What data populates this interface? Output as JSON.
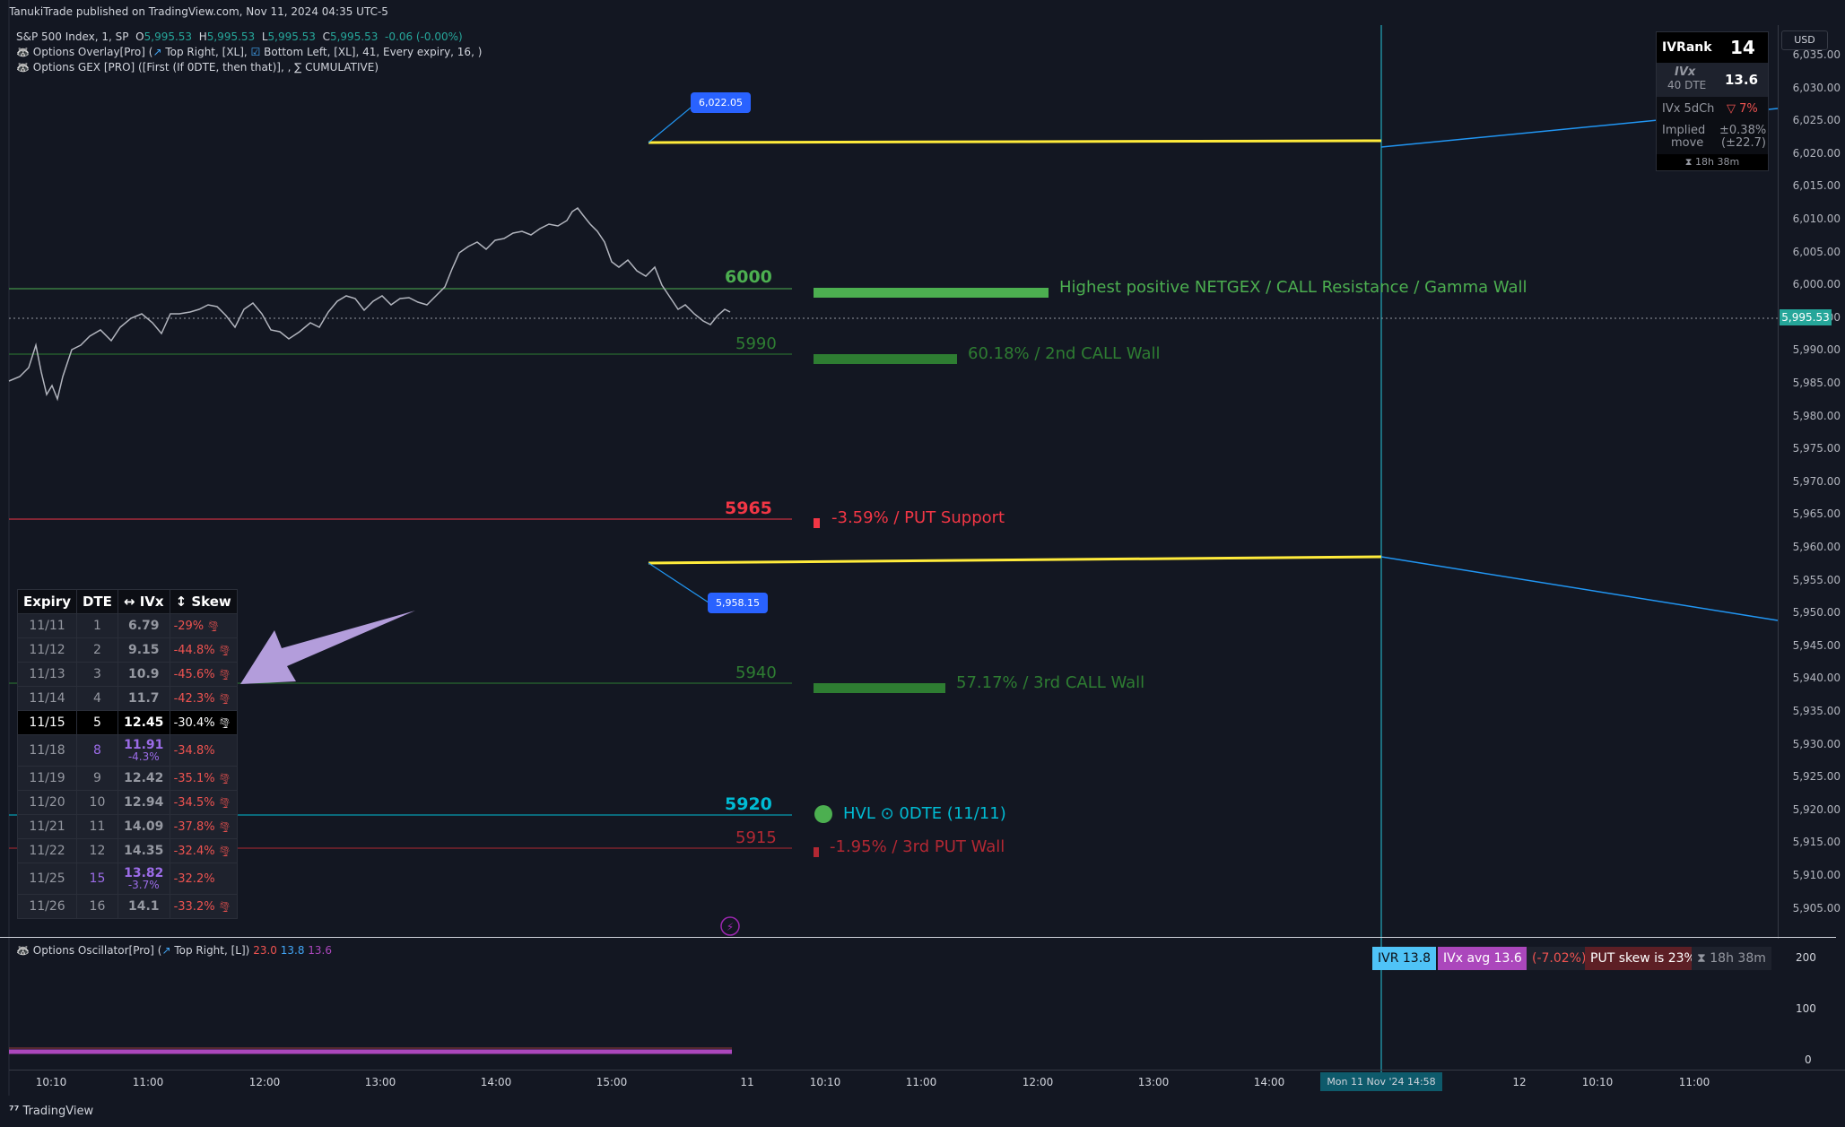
{
  "header": {
    "published": "TanukiTrade published on TradingView.com, Nov 11, 2024 04:35 UTC-5"
  },
  "legend": {
    "symbol": "S&P 500 Index, 1, SP",
    "o_label": "O",
    "o_val": "5,995.53",
    "h_label": "H",
    "h_val": "5,995.53",
    "l_label": "L",
    "l_val": "5,995.53",
    "c_label": "C",
    "c_val": "5,995.53",
    "change": "-0.06 (-0.00%)",
    "line2_a": "Options Overlay[Pro] (",
    "line2_b": "Top Right, [XL],",
    "line2_c": "Bottom Left, [XL], 41, Every expiry, 16, )",
    "line3": "Options GEX [PRO] ([First (If 0DTE, then that)], , ∑ CUMULATIVE)"
  },
  "price_axis": {
    "currency": "USD",
    "ticks": [
      "6,035.00",
      "6,030.00",
      "6,025.00",
      "6,020.00",
      "6,015.00",
      "6,010.00",
      "6,005.00",
      "6,000.00",
      "5,995.00",
      "5,990.00",
      "5,985.00",
      "5,980.00",
      "5,975.00",
      "5,970.00",
      "5,965.00",
      "5,960.00",
      "5,955.00",
      "5,950.00",
      "5,945.00",
      "5,940.00",
      "5,935.00",
      "5,930.00",
      "5,925.00",
      "5,920.00",
      "5,915.00",
      "5,910.00",
      "5,905.00"
    ],
    "last_price": "5,995.53"
  },
  "time_axis": {
    "labels": [
      "10:10",
      "11:00",
      "12:00",
      "13:00",
      "14:00",
      "15:00",
      "11",
      "10:10",
      "11:00",
      "12:00",
      "13:00",
      "14:00",
      "12",
      "10:10",
      "11:00"
    ],
    "cursor": "Mon 11 Nov '24   14:58"
  },
  "levels": {
    "l6000": {
      "price": "6000",
      "text": "Highest positive NETGEX / CALL Resistance / Gamma Wall"
    },
    "l5990": {
      "price": "5990",
      "text": "60.18% / 2nd CALL Wall"
    },
    "l5965": {
      "price": "5965",
      "text": "-3.59% / PUT Support"
    },
    "l5940": {
      "price": "5940",
      "text": "57.17% / 3rd CALL Wall"
    },
    "l5920": {
      "price": "5920",
      "text": "HVL ⊙ 0DTE (11/11)"
    },
    "l5915": {
      "price": "5915",
      "text": "-1.95% / 3rd PUT Wall"
    }
  },
  "bubbles": {
    "upper": "6,022.05",
    "lower": "5,958.15"
  },
  "ivr_box": {
    "ivrank_label": "IVRank",
    "ivrank_value": "14",
    "ivx_label": "IVx",
    "ivx_dte": "40 DTE",
    "ivx_value": "13.6",
    "ivx5d_label": "IVx 5dCh",
    "ivx5d_value": "▽ 7%",
    "implied_label": "Implied",
    "move_label": "move",
    "implied_pct": "±0.38%",
    "implied_pts": "(±22.7)",
    "timer": "⧗ 18h 38m"
  },
  "expiry_table": {
    "headers": [
      "Expiry",
      "DTE",
      "↔ IVx",
      "↕ Skew"
    ],
    "rows": [
      {
        "expiry": "11/11",
        "dte": "1",
        "ivx": "6.79",
        "sub": "",
        "skew": "-29%",
        "hl": false,
        "purple": false
      },
      {
        "expiry": "11/12",
        "dte": "2",
        "ivx": "9.15",
        "sub": "",
        "skew": "-44.8%",
        "hl": false,
        "purple": false
      },
      {
        "expiry": "11/13",
        "dte": "3",
        "ivx": "10.9",
        "sub": "",
        "skew": "-45.6%",
        "hl": false,
        "purple": false
      },
      {
        "expiry": "11/14",
        "dte": "4",
        "ivx": "11.7",
        "sub": "",
        "skew": "-42.3%",
        "hl": false,
        "purple": false
      },
      {
        "expiry": "11/15",
        "dte": "5",
        "ivx": "12.45",
        "sub": "",
        "skew": "-30.4%",
        "hl": true,
        "purple": false
      },
      {
        "expiry": "11/18",
        "dte": "8",
        "ivx": "11.91",
        "sub": "-4.3%",
        "skew": "-34.8%",
        "hl": false,
        "purple": true
      },
      {
        "expiry": "11/19",
        "dte": "9",
        "ivx": "12.42",
        "sub": "",
        "skew": "-35.1%",
        "hl": false,
        "purple": false
      },
      {
        "expiry": "11/20",
        "dte": "10",
        "ivx": "12.94",
        "sub": "",
        "skew": "-34.5%",
        "hl": false,
        "purple": false
      },
      {
        "expiry": "11/21",
        "dte": "11",
        "ivx": "14.09",
        "sub": "",
        "skew": "-37.8%",
        "hl": false,
        "purple": false
      },
      {
        "expiry": "11/22",
        "dte": "12",
        "ivx": "14.35",
        "sub": "",
        "skew": "-32.4%",
        "hl": false,
        "purple": false
      },
      {
        "expiry": "11/25",
        "dte": "15",
        "ivx": "13.82",
        "sub": "-3.7%",
        "skew": "-32.2%",
        "hl": false,
        "purple": true
      },
      {
        "expiry": "11/26",
        "dte": "16",
        "ivx": "14.1",
        "sub": "",
        "skew": "-33.2%",
        "hl": false,
        "purple": false
      }
    ]
  },
  "oscillator": {
    "legend_a": "Options Oscillator[Pro] (",
    "legend_b": "Top Right, [L])",
    "v1": "23.0",
    "v2": "13.8",
    "v3": "13.6",
    "ticks": [
      "200",
      "100",
      "0"
    ],
    "badge_ivr": "IVR 13.8",
    "badge_ivx": "IVx avg 13.6",
    "badge_ch": "(-7.02%)",
    "badge_skew": "PUT skew is 23%",
    "badge_timer": "⧗ 18h 38m"
  },
  "footer": {
    "brand": "TradingView"
  },
  "colors": {
    "green": "#4caf50",
    "red": "#f23645",
    "cyan": "#00bcd4",
    "yellow": "#ffeb3b",
    "blue": "#2196f3"
  }
}
